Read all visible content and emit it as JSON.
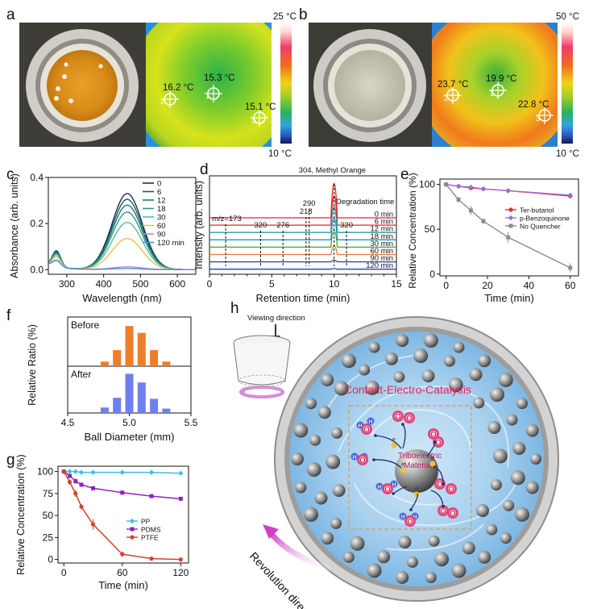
{
  "panels": {
    "a": {
      "label": "a",
      "scale_max": "25 °C",
      "scale_min": "10 °C",
      "temps": [
        {
          "text": "16.2 °C",
          "idx": "2"
        },
        {
          "text": "15.3 °C",
          "idx": "1"
        },
        {
          "text": "15.1 °C",
          "idx": "3"
        }
      ]
    },
    "b": {
      "label": "b",
      "scale_max": "50 °C",
      "scale_min": "10 °C",
      "temps": [
        {
          "text": "23.7 °C",
          "idx": "2"
        },
        {
          "text": "19.9 °C",
          "idx": "1"
        },
        {
          "text": "22.8 °C",
          "idx": "3"
        }
      ]
    },
    "h": {
      "label": "h",
      "viewing": "Viewing direction",
      "title": "Contact-Electro-Catalysis",
      "center_line1": "Triboelectric",
      "center_line2": "Materials",
      "revolution": "Revolution direction",
      "o_label": "O",
      "h_label": "H",
      "e_label": "e"
    }
  },
  "colors": {
    "orange_bar": "#f07d2a",
    "blue_bar": "#6f7ff0",
    "red": "#d6343a",
    "violet": "#9b6fdc",
    "grey": "#8c8c8c",
    "pp": "#3fc0e3",
    "pdms": "#9221c2",
    "ptfe": "#d4412c",
    "catalysis_title": "#e8265a"
  },
  "chart_data": [
    {
      "panel": "c",
      "type": "line",
      "xlabel": "Wavelength (nm)",
      "ylabel": "Absorbance (arb. units)",
      "xlim": [
        250,
        650
      ],
      "ylim": [
        -0.02,
        0.4
      ],
      "xticks": [
        300,
        400,
        500,
        600
      ],
      "yticks": [
        0.0,
        0.2,
        0.4
      ],
      "legend_position": "top-right",
      "peak_nm": 464,
      "series": [
        {
          "name": "0",
          "color": "#17324d",
          "peak": 0.33,
          "shoulder": 0.07
        },
        {
          "name": "6",
          "color": "#1f5a66",
          "peak": 0.305,
          "shoulder": 0.067
        },
        {
          "name": "12",
          "color": "#1f7a73",
          "peak": 0.28,
          "shoulder": 0.063
        },
        {
          "name": "18",
          "color": "#2f9a86",
          "peak": 0.25,
          "shoulder": 0.058
        },
        {
          "name": "30",
          "color": "#58bba2",
          "peak": 0.205,
          "shoulder": 0.053
        },
        {
          "name": "60",
          "color": "#e0c350",
          "peak": 0.135,
          "shoulder": 0.045
        },
        {
          "name": "90",
          "color": "#c07be0",
          "peak": 0.012,
          "shoulder": 0.03
        },
        {
          "name": "120 min",
          "color": "#4a8fe0",
          "peak": 0.005,
          "shoulder": 0.028
        }
      ]
    },
    {
      "panel": "d",
      "type": "line",
      "xlabel": "Retention time (min)",
      "ylabel": "Intensity (arb. units)",
      "xlim": [
        0,
        15
      ],
      "xticks": [
        0,
        5,
        10,
        15
      ],
      "main_peak_label": "304, Methyl Orange",
      "main_peak_time": 10.0,
      "legend_title": "Degradation time",
      "traces": [
        {
          "name": "0 min",
          "color": "#e8262e",
          "peak_height": 1.0
        },
        {
          "name": "6 min",
          "color": "#e8262e",
          "peak_height": 0.85
        },
        {
          "name": "12 min",
          "color": "#2a9ba0",
          "peak_height": 0.75
        },
        {
          "name": "18 min",
          "color": "#1c93c8",
          "peak_height": 0.65
        },
        {
          "name": "30 min",
          "color": "#4aa23a",
          "peak_height": 0.5
        },
        {
          "name": "60 min",
          "color": "#e8783c",
          "peak_height": 0.25
        },
        {
          "name": "90 min",
          "color": "#2a3fb8",
          "peak_height": 0.05
        },
        {
          "name": "120 min",
          "color": "#2a3fb8",
          "peak_height": 0.02
        }
      ],
      "annotations": [
        {
          "text": "m/z=173",
          "x": 1.3
        },
        {
          "text": "320",
          "x": 4.1
        },
        {
          "text": "276",
          "x": 5.9
        },
        {
          "text": "218",
          "x": 7.75
        },
        {
          "text": "290",
          "x": 8.0
        },
        {
          "text": "320",
          "x": 11.0
        }
      ]
    },
    {
      "panel": "e",
      "type": "line",
      "xlabel": "Time (min)",
      "ylabel": "Relative Concentration (%)",
      "xlim": [
        -3,
        64
      ],
      "ylim": [
        -2,
        106
      ],
      "xticks": [
        0,
        20,
        40,
        60
      ],
      "yticks": [
        0,
        50,
        100
      ],
      "x": [
        0,
        6,
        12,
        18,
        30,
        60
      ],
      "series": [
        {
          "name": "Ter-butanol",
          "color": "#d6343a",
          "values": [
            100,
            98,
            96,
            95,
            93,
            87
          ],
          "err": [
            0,
            1,
            1,
            1,
            1,
            2
          ]
        },
        {
          "name": "p-Benzoquinone",
          "color": "#9b6fdc",
          "values": [
            100,
            98,
            97,
            95,
            93,
            88
          ],
          "err": [
            0,
            1,
            1,
            1,
            1,
            2
          ]
        },
        {
          "name": "No Quencher",
          "color": "#8c8c8c",
          "values": [
            100,
            83,
            71,
            59,
            41,
            7
          ],
          "err": [
            0,
            3,
            5,
            3,
            6,
            5
          ]
        }
      ]
    },
    {
      "panel": "f",
      "type": "bar",
      "xlabel": "Ball Diameter (mm)",
      "ylabel": "Relative Ratio (%)",
      "xlim": [
        4.5,
        5.5
      ],
      "xticks": [
        4.5,
        5.0,
        5.5
      ],
      "x": [
        4.8,
        4.9,
        5.0,
        5.1,
        5.2,
        5.3
      ],
      "series": [
        {
          "name": "Before",
          "values": [
            4,
            14,
            35,
            29,
            14,
            4
          ]
        },
        {
          "name": "After",
          "values": [
            5,
            14,
            36,
            28,
            13,
            4
          ]
        }
      ],
      "ymax": 40
    },
    {
      "panel": "g",
      "type": "line",
      "xlabel": "Time (min)",
      "ylabel": "Relative Concentration (%)",
      "xlim": [
        -6,
        128
      ],
      "ylim": [
        -4,
        106
      ],
      "xticks": [
        0,
        60,
        120
      ],
      "yticks": [
        0,
        25,
        50,
        75,
        100
      ],
      "series": [
        {
          "name": "PP",
          "color": "#3fc0e3",
          "x": [
            0,
            6,
            12,
            18,
            30,
            60,
            90,
            120
          ],
          "values": [
            100,
            100,
            100,
            99,
            99,
            99,
            99,
            98
          ],
          "err": [
            0,
            1,
            1,
            1,
            1,
            1,
            1,
            1
          ]
        },
        {
          "name": "PDMS",
          "color": "#9221c2",
          "x": [
            0,
            6,
            12,
            18,
            30,
            60,
            90,
            120
          ],
          "values": [
            100,
            95,
            89,
            85,
            81,
            76,
            72,
            69
          ],
          "err": [
            0,
            2,
            3,
            2,
            2,
            2,
            2,
            2
          ]
        },
        {
          "name": "PTFE",
          "color": "#d4412c",
          "x": [
            0,
            6,
            12,
            18,
            30,
            60,
            90,
            120
          ],
          "values": [
            100,
            88,
            75,
            60,
            40,
            6,
            1,
            0
          ],
          "err": [
            0,
            3,
            4,
            3,
            6,
            3,
            1,
            1
          ]
        }
      ]
    }
  ]
}
